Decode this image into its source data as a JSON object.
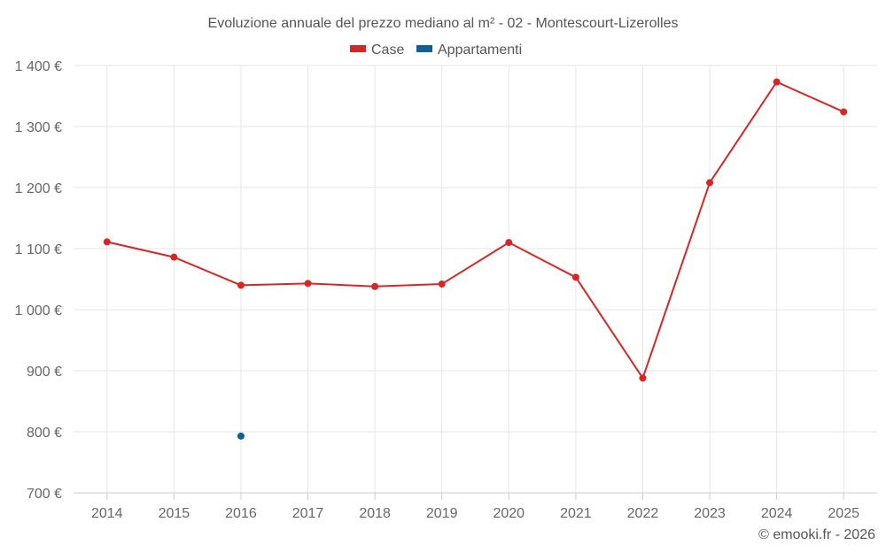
{
  "chart_data": {
    "type": "line",
    "title": "Evoluzione annuale del prezzo mediano al m² - 02 - Montescourt-Lizerolles",
    "categories": [
      "2014",
      "2015",
      "2016",
      "2017",
      "2018",
      "2019",
      "2020",
      "2021",
      "2022",
      "2023",
      "2024",
      "2025"
    ],
    "series": [
      {
        "name": "Case",
        "color": "#d62728",
        "values": [
          1111,
          1086,
          1040,
          1043,
          1038,
          1042,
          1110,
          1053,
          888,
          1208,
          1373,
          1324
        ]
      },
      {
        "name": "Appartamenti",
        "color": "#0e5f96",
        "values": [
          null,
          null,
          793,
          null,
          null,
          null,
          null,
          null,
          null,
          null,
          null,
          null
        ]
      }
    ],
    "ylim": [
      700,
      1400
    ],
    "yticks": [
      1400,
      1300,
      1200,
      1100,
      1000,
      900,
      800,
      700
    ],
    "ytick_labels": [
      "1 400 €",
      "1 300 €",
      "1 200 €",
      "1 100 €",
      "1 000 €",
      "900 €",
      "800 €",
      "700 €"
    ],
    "legend": "top-center",
    "grid": true
  },
  "credit": "© emooki.fr - 2026"
}
